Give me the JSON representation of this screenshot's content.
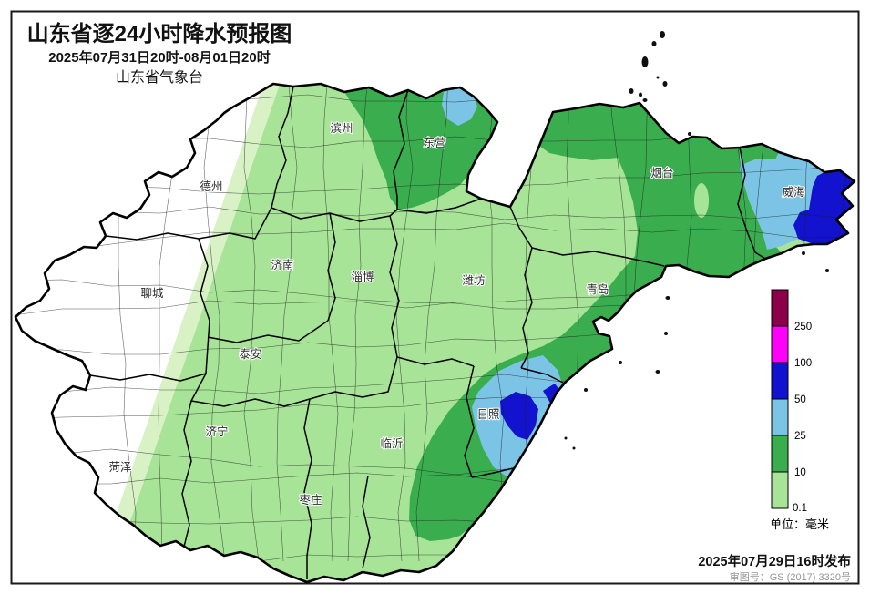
{
  "header": {
    "title": "山东省逐24小时降水预报图",
    "time_range": "2025年07月31日20时-08月01日20时",
    "agency": "山东省气象台"
  },
  "legend": {
    "ticks": [
      "250",
      "100",
      "50",
      "25",
      "10",
      "0.1"
    ],
    "unit_label": "单位：毫米",
    "levels_top_to_bottom": [
      {
        "range_mm": ">250",
        "color": "#8b0048"
      },
      {
        "range_mm": "100-250",
        "color": "#ff00fa"
      },
      {
        "range_mm": "50-100",
        "color": "#1212cf"
      },
      {
        "range_mm": "25-50",
        "color": "#7cc4e6"
      },
      {
        "range_mm": "10-25",
        "color": "#3aad4e"
      },
      {
        "range_mm": "0.1-10",
        "color": "#a7e497"
      }
    ]
  },
  "cities": [
    {
      "id": "binzhou",
      "name": "滨州"
    },
    {
      "id": "dongying",
      "name": "东营"
    },
    {
      "id": "dezhou",
      "name": "德州"
    },
    {
      "id": "yantai",
      "name": "烟台"
    },
    {
      "id": "weihai",
      "name": "威海"
    },
    {
      "id": "jinan",
      "name": "济南"
    },
    {
      "id": "zibo",
      "name": "淄博"
    },
    {
      "id": "weifang",
      "name": "潍坊"
    },
    {
      "id": "qingdao",
      "name": "青岛"
    },
    {
      "id": "liaocheng",
      "name": "聊城"
    },
    {
      "id": "taian",
      "name": "泰安"
    },
    {
      "id": "jining",
      "name": "济宁"
    },
    {
      "id": "heze",
      "name": "菏泽"
    },
    {
      "id": "linyi",
      "name": "临沂"
    },
    {
      "id": "rizhao",
      "name": "日照"
    },
    {
      "id": "zaozhuang",
      "name": "枣庄"
    }
  ],
  "footer": {
    "published": "2025年07月29日16时发布",
    "map_approval_no": "审图号：GS (2017) 3320号"
  },
  "colors": {
    "no_rain": "#ffffff",
    "pale_edge": "#d8f2c6",
    "rain_0_1_to_10": "#a7e497",
    "rain_10_to_25": "#3aad4e",
    "rain_25_to_50": "#7cc4e6",
    "rain_50_to_100": "#1212cf",
    "rain_100_to_250": "#ff00fa",
    "rain_above_250": "#8b0048",
    "boundary": "#000000"
  }
}
